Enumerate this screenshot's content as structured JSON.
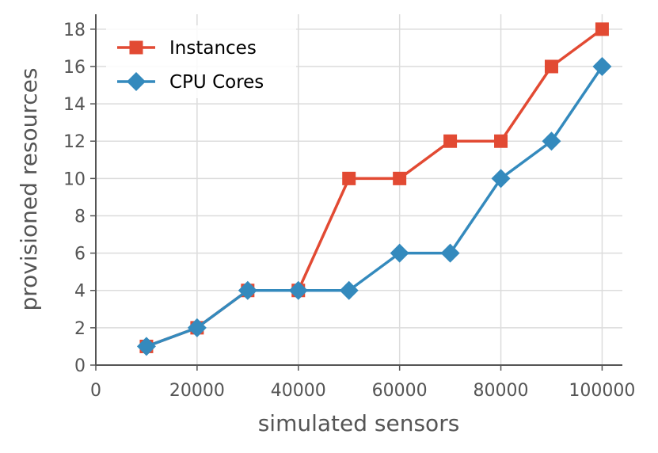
{
  "chart_data": {
    "type": "line",
    "title": "",
    "xlabel": "simulated sensors",
    "ylabel": "provisioned resources",
    "xlim": [
      0,
      104000
    ],
    "ylim": [
      0,
      18.8
    ],
    "x_ticks": [
      0,
      20000,
      40000,
      60000,
      80000,
      100000
    ],
    "y_ticks": [
      0,
      2,
      4,
      6,
      8,
      10,
      12,
      14,
      16,
      18
    ],
    "grid": true,
    "legend_position": "top-left",
    "x": [
      10000,
      20000,
      30000,
      40000,
      50000,
      60000,
      70000,
      80000,
      90000,
      100000
    ],
    "series": [
      {
        "name": "Instances",
        "color": "#e24a33",
        "marker": "square",
        "values": [
          1,
          2,
          4,
          4,
          10,
          10,
          12,
          12,
          16,
          18
        ]
      },
      {
        "name": "CPU Cores",
        "color": "#348abd",
        "marker": "diamond",
        "values": [
          1,
          2,
          4,
          4,
          4,
          6,
          6,
          10,
          12,
          16
        ]
      }
    ]
  }
}
